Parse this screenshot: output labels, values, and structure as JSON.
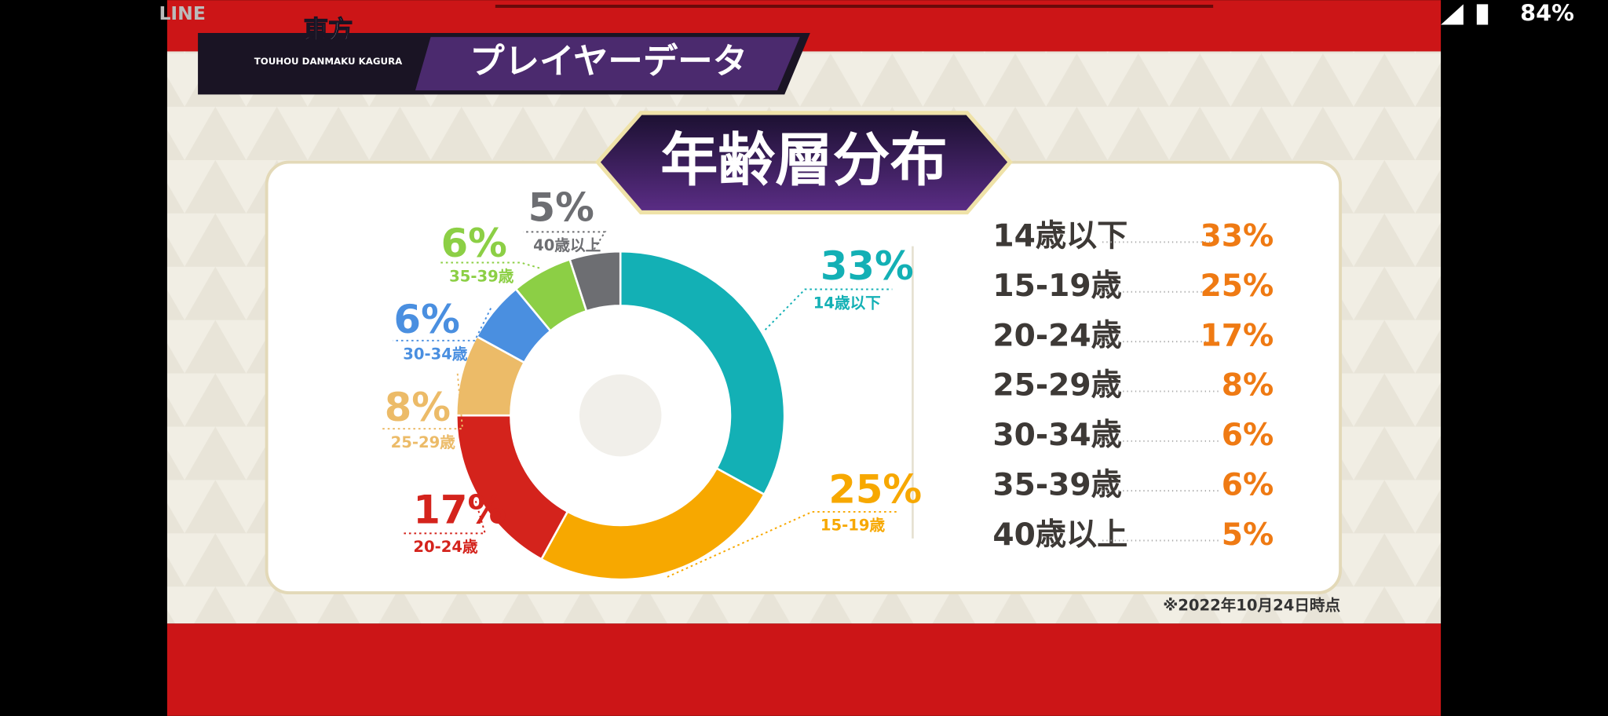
{
  "status_bar": {
    "app": "LINE",
    "battery": "84%"
  },
  "header": {
    "logo_top": "東方",
    "logo_sub": "TOUHOU DANMAKU KAGURA",
    "section": "プレイヤーデータ"
  },
  "chart_data": {
    "type": "pie",
    "title": "年齢層分布",
    "categories": [
      "14歳以下",
      "15-19歳",
      "20-24歳",
      "25-29歳",
      "30-34歳",
      "35-39歳",
      "40歳以上"
    ],
    "values": [
      33,
      25,
      17,
      8,
      6,
      6,
      5
    ],
    "value_labels": [
      "33%",
      "25%",
      "17%",
      "8%",
      "6%",
      "6%",
      "5%"
    ],
    "colors": [
      "#13b0b5",
      "#f7a800",
      "#d4231c",
      "#ecbb68",
      "#4a8fe0",
      "#8ccf45",
      "#6d6e72"
    ],
    "donut": true
  },
  "footnote": "※2022年10月24日時点"
}
